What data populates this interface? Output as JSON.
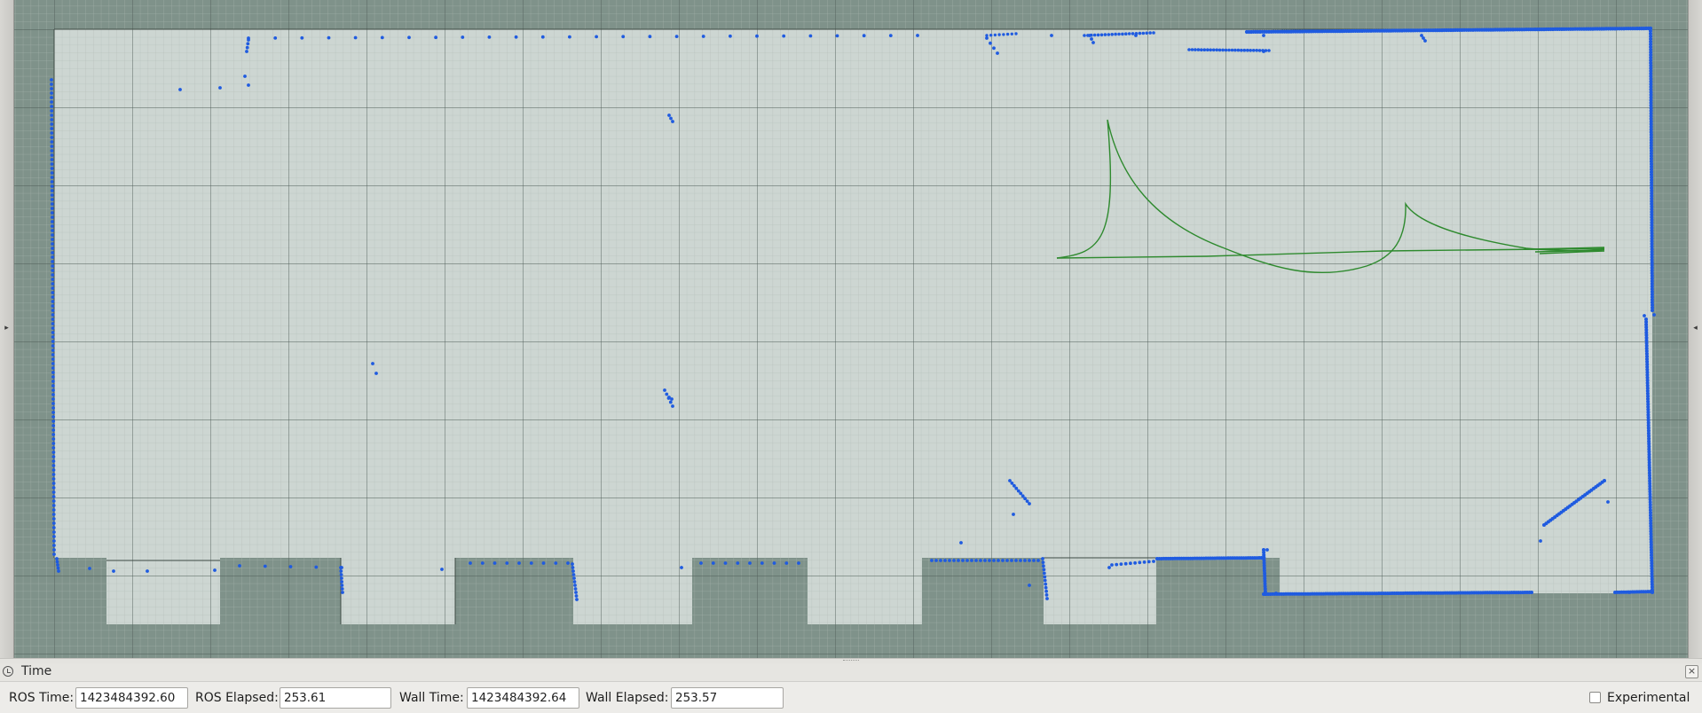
{
  "viewport": {
    "background_color": "#7f928a",
    "known_map_color": "#cdd6d2",
    "scan_color": "#1f5be0",
    "path_color": "#2e8a2e"
  },
  "time_panel": {
    "title": "Time",
    "ros_time_label": "ROS Time:",
    "ros_time_value": "1423484392.60",
    "ros_elapsed_label": "ROS Elapsed:",
    "ros_elapsed_value": "253.61",
    "wall_time_label": "Wall Time:",
    "wall_time_value": "1423484392.64",
    "wall_elapsed_label": "Wall Elapsed:",
    "wall_elapsed_value": "253.57",
    "experimental_label": "Experimental",
    "experimental_checked": false
  }
}
